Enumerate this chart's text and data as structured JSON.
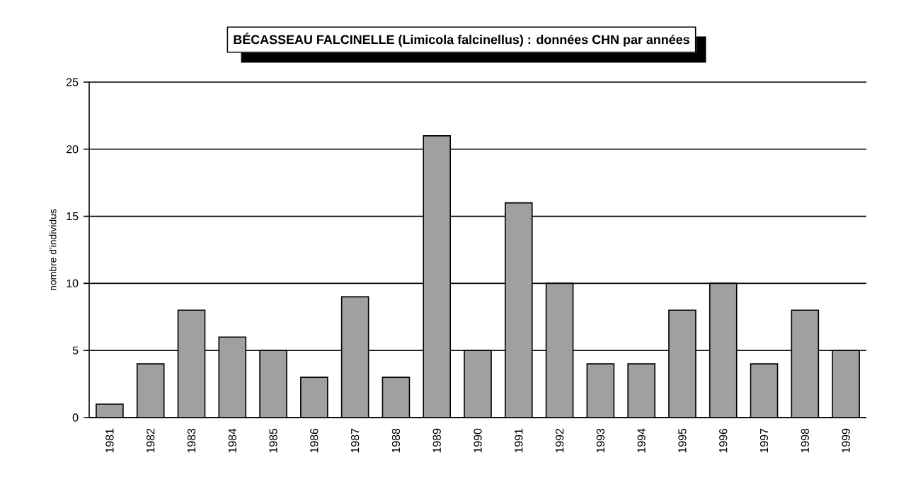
{
  "chart_data": {
    "type": "bar",
    "title": "BÉCASSEAU FALCINELLE (Limicola falcinellus) : données CHN par années",
    "ylabel": "nombre d'individus",
    "categories": [
      "1981",
      "1982",
      "1983",
      "1984",
      "1985",
      "1986",
      "1987",
      "1988",
      "1989",
      "1990",
      "1991",
      "1992",
      "1993",
      "1994",
      "1995",
      "1996",
      "1997",
      "1998",
      "1999"
    ],
    "values": [
      1,
      4,
      8,
      6,
      5,
      3,
      9,
      3,
      21,
      5,
      16,
      10,
      4,
      4,
      8,
      10,
      4,
      8,
      5
    ],
    "color": "#a0a0a0",
    "ylim": [
      0,
      25
    ],
    "yticks": [
      0,
      5,
      10,
      15,
      20,
      25
    ],
    "grid": "y"
  }
}
